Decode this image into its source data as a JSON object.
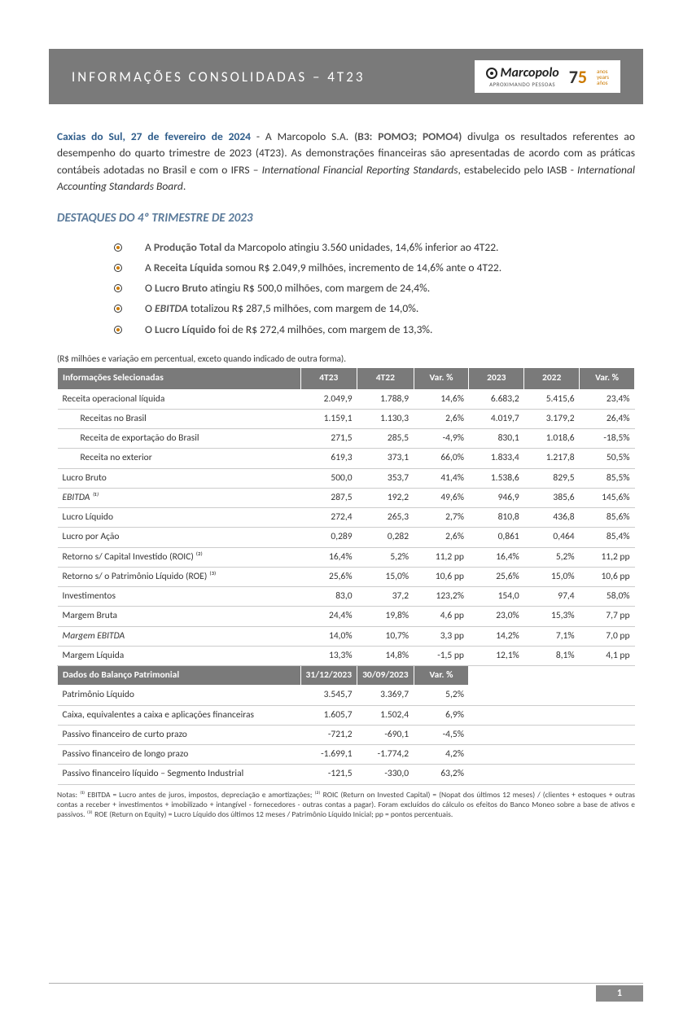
{
  "header": {
    "title": "INFORMAÇÕES CONSOLIDADAS – 4T23",
    "brand": "Marcopolo",
    "tagline": "APROXIMANDO PESSOAS",
    "anniv_seven": "7",
    "anniv_five": "5",
    "years_pt": "anos",
    "years_en": "years",
    "years_es": "años"
  },
  "intro": {
    "location_date": "Caxias do Sul, 27 de fevereiro de 2024",
    "dash": " - A Marcopolo S.A. ",
    "ticker": "(B3: POMO3; POMO4)",
    "body1": " divulga os resultados referentes ao desempenho do quarto trimestre de 2023 (4T23). As demonstrações financeiras são apresentadas de acordo com as práticas contábeis adotadas no Brasil e com o IFRS – ",
    "ital1": "International Financial Reporting Standards",
    "body2": ", estabelecido pelo IASB - ",
    "ital2": "International Accounting Standards Board",
    "body3": "."
  },
  "section_title": "DESTAQUES DO 4º TRIMESTRE DE 2023",
  "highlights": [
    {
      "pre": "A ",
      "strong": "Produção Total",
      "post": " da Marcopolo atingiu 3.560 unidades, 14,6% inferior ao 4T22."
    },
    {
      "pre": "A ",
      "strong": "Receita Líquida",
      "post": " somou R$ 2.049,9 milhões, incremento de 14,6% ante o 4T22."
    },
    {
      "pre": "O ",
      "strong": "Lucro Bruto",
      "post": " atingiu R$ 500,0 milhões, com margem de 24,4%."
    },
    {
      "pre": "O ",
      "em": "EBITDA",
      "post": " totalizou R$ 287,5 milhões, com margem de 14,0%."
    },
    {
      "pre": "O ",
      "strong": "Lucro Líquido",
      "post": " foi de R$ 272,4 milhões, com margem de 13,3%."
    }
  ],
  "table_caption": "(R$ milhões e variação em percentual, exceto quando indicado de outra forma).",
  "table": {
    "header1": [
      "Informações Selecionadas",
      "4T23",
      "4T22",
      "Var. %",
      "2023",
      "2022",
      "Var. %"
    ],
    "rows": [
      {
        "l": "Receita operacional líquida",
        "c": [
          "2.049,9",
          "1.788,9",
          "14,6%",
          "6.683,2",
          "5.415,6",
          "23,4%"
        ]
      },
      {
        "l": "Receitas no Brasil",
        "sub": true,
        "c": [
          "1.159,1",
          "1.130,3",
          "2,6%",
          "4.019,7",
          "3.179,2",
          "26,4%"
        ]
      },
      {
        "l": "Receita de exportação do Brasil",
        "sub": true,
        "c": [
          "271,5",
          "285,5",
          "-4,9%",
          "830,1",
          "1.018,6",
          "-18,5%"
        ]
      },
      {
        "l": "Receita no exterior",
        "sub": true,
        "c": [
          "619,3",
          "373,1",
          "66,0%",
          "1.833,4",
          "1.217,8",
          "50,5%"
        ]
      },
      {
        "l": "Lucro Bruto",
        "c": [
          "500,0",
          "353,7",
          "41,4%",
          "1.538,6",
          "829,5",
          "85,5%"
        ]
      },
      {
        "l": "EBITDA ⁽¹⁾",
        "ital": true,
        "c": [
          "287,5",
          "192,2",
          "49,6%",
          "946,9",
          "385,6",
          "145,6%"
        ]
      },
      {
        "l": "Lucro Líquido",
        "c": [
          "272,4",
          "265,3",
          "2,7%",
          "810,8",
          "436,8",
          "85,6%"
        ]
      },
      {
        "l": "Lucro por Ação",
        "c": [
          "0,289",
          "0,282",
          "2,6%",
          "0,861",
          "0,464",
          "85,4%"
        ]
      },
      {
        "l": "Retorno s/ Capital Investido (ROIC) ⁽²⁾",
        "c": [
          "16,4%",
          "5,2%",
          "11,2 pp",
          "16,4%",
          "5,2%",
          "11,2 pp"
        ]
      },
      {
        "l": "Retorno s/ o Patrimônio Líquido (ROE) ⁽³⁾",
        "c": [
          "25,6%",
          "15,0%",
          "10,6 pp",
          "25,6%",
          "15,0%",
          "10,6 pp"
        ]
      },
      {
        "l": "Investimentos",
        "c": [
          "83,0",
          "37,2",
          "123,2%",
          "154,0",
          "97,4",
          "58,0%"
        ]
      },
      {
        "l": "Margem Bruta",
        "c": [
          "24,4%",
          "19,8%",
          "4,6 pp",
          "23,0%",
          "15,3%",
          "7,7 pp"
        ]
      },
      {
        "l": "Margem EBITDA",
        "ital": true,
        "c": [
          "14,0%",
          "10,7%",
          "3,3 pp",
          "14,2%",
          "7,1%",
          "7,0 pp"
        ]
      },
      {
        "l": "Margem Líquida",
        "c": [
          "13,3%",
          "14,8%",
          "-1,5 pp",
          "12,1%",
          "8,1%",
          "4,1 pp"
        ]
      }
    ],
    "header2": [
      "Dados do Balanço Patrimonial",
      "31/12/2023",
      "30/09/2023",
      "Var. %"
    ],
    "rows2": [
      {
        "l": "Patrimônio Líquido",
        "c": [
          "3.545,7",
          "3.369,7",
          "5,2%"
        ]
      },
      {
        "l": "Caixa, equivalentes a caixa e aplicações financeiras",
        "c": [
          "1.605,7",
          "1.502,4",
          "6,9%"
        ]
      },
      {
        "l": "Passivo financeiro de curto prazo",
        "c": [
          "-721,2",
          "-690,1",
          "-4,5%"
        ]
      },
      {
        "l": "Passivo financeiro de longo prazo",
        "c": [
          "-1.699,1",
          "-1.774,2",
          "4,2%"
        ]
      },
      {
        "l": "Passivo financeiro líquido –  Segmento Industrial",
        "c": [
          "-121,5",
          "-330,0",
          "63,2%"
        ]
      }
    ]
  },
  "footnotes": "Notas: ⁽¹⁾ EBITDA = Lucro antes de juros, impostos, depreciação e amortizações; ⁽²⁾ ROIC (Return on Invested Capital) = (Nopat dos últimos 12 meses) / (clientes + estoques + outras contas a receber + investimentos + imobilizado + intangível - fornecedores - outras contas a pagar). Foram excluídos do cálculo os efeitos do Banco Moneo sobre a base de ativos e passivos. ⁽³⁾ ROE (Return on Equity) = Lucro Líquido dos últimos 12 meses / Patrimônio Líquido Inicial; pp = pontos percentuais.",
  "page_number": "1",
  "colors": {
    "header_bg": "#7a7a7a",
    "accent": "#5a7a9a",
    "anniv_orange": "#cc7a00"
  }
}
